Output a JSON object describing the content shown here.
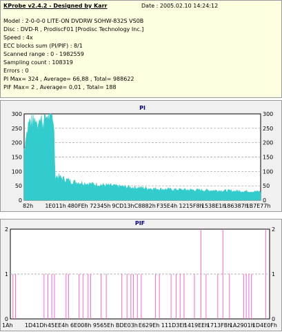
{
  "header": {
    "title": "KProbe v2.4.2 - Designed by Karr",
    "date": "Date : 2005.02.10 14:24:12",
    "lines": [
      "Model : 2-0-0-0 LITE-ON DVDRW SOHW-832S  VS0B",
      "Disc : DVD-R , ProdiscF01 [Prodisc Technology Inc.]",
      "Speed : 4x",
      "ECC blocks sum (PI/PIF) : 8/1",
      "Scanned range : 0 - 1982559",
      "Sampling count : 108319",
      "Errors : 0",
      "PI Max= 324 , Average= 66,88 , Total= 988622",
      "PIF Max= 2 , Average= 0,01 , Total= 188"
    ]
  },
  "chart_data": [
    {
      "type": "area",
      "title": "PI",
      "ylim": [
        0,
        300
      ],
      "yticks": [
        0,
        50,
        100,
        150,
        200,
        250,
        300
      ],
      "xticks": [
        "82h",
        "1E011h",
        "480FEh",
        "72345h",
        "9CD13h",
        "C8882h",
        "F35E4h",
        "1215F8h",
        "1538E1h",
        "186387h",
        "1B7E77h"
      ],
      "grid": true,
      "color": "#33cccc",
      "profile_x": [
        0,
        0.02,
        0.08,
        0.1,
        0.125,
        0.13,
        0.2,
        0.3,
        0.45,
        0.6,
        0.75,
        0.9,
        1.0
      ],
      "profile_y": [
        180,
        270,
        275,
        300,
        290,
        85,
        65,
        55,
        45,
        38,
        35,
        32,
        30
      ]
    },
    {
      "type": "bar",
      "title": "PIF",
      "ylim": [
        0,
        2
      ],
      "yticks": [
        0,
        1,
        2
      ],
      "xticks": [
        "1Ah",
        "1D41Dh",
        "45EE4h",
        "6E008h",
        "9565Eh",
        "BDE03h",
        "E629Eh",
        "111D3Eh",
        "1419EEh",
        "1713FBh",
        "1A2901h",
        "1D4E0Fh"
      ],
      "grid": true,
      "color": "#ff66cc",
      "spikes": [
        [
          0.01,
          1
        ],
        [
          0.02,
          1
        ],
        [
          0.13,
          1
        ],
        [
          0.145,
          1
        ],
        [
          0.16,
          1
        ],
        [
          0.17,
          1
        ],
        [
          0.215,
          1
        ],
        [
          0.225,
          1
        ],
        [
          0.265,
          1
        ],
        [
          0.28,
          1
        ],
        [
          0.3,
          1
        ],
        [
          0.31,
          1
        ],
        [
          0.35,
          1
        ],
        [
          0.37,
          1
        ],
        [
          0.43,
          1
        ],
        [
          0.45,
          1
        ],
        [
          0.465,
          1
        ],
        [
          0.475,
          1
        ],
        [
          0.49,
          1
        ],
        [
          0.505,
          1
        ],
        [
          0.56,
          1
        ],
        [
          0.575,
          1
        ],
        [
          0.62,
          1
        ],
        [
          0.64,
          1
        ],
        [
          0.655,
          1
        ],
        [
          0.67,
          1
        ],
        [
          0.71,
          1
        ],
        [
          0.735,
          2
        ],
        [
          0.755,
          1
        ],
        [
          0.8,
          1
        ],
        [
          0.82,
          2
        ],
        [
          0.845,
          1
        ],
        [
          0.9,
          1
        ],
        [
          0.91,
          1
        ],
        [
          0.92,
          1
        ],
        [
          0.93,
          1
        ],
        [
          0.985,
          2
        ]
      ]
    }
  ]
}
